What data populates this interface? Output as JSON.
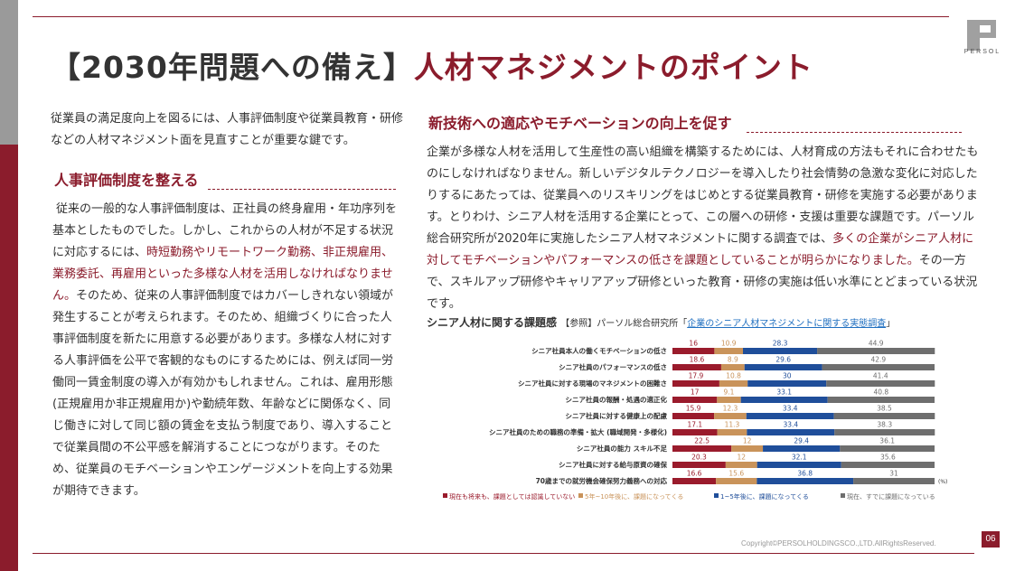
{
  "header": {
    "title_prefix": "【2030年問題への備え】",
    "title_main": "人材マネジメントのポイント",
    "logo_text": "PERSOL"
  },
  "intro": {
    "text": "従業員の満足度向上を図るには、人事評価制度や従業員教育・研修などの人材マネジメント面を見直すことが重要な鍵です。"
  },
  "left_section": {
    "heading": "人事評価制度を整える",
    "p1": "従来の一般的な人事評価制度は、正社員の終身雇用・年功序列を基本としたものでした。しかし、これからの人材が不足する状況に対応するには、",
    "highlight": "時短勤務やリモートワーク勤務、非正規雇用、業務委託、再雇用といった多様な人材を活用しなければなりません。",
    "p2": "そのため、従来の人事評価制度ではカバーしきれない領域が発生することが考えられます。そのため、組織づくりに合った人事評価制度を新たに用意する必要があります。多様な人材に対する人事評価を公平で客観的なものにするためには、例えば同一労働同一賃金制度の導入が有効かもしれません。これは、雇用形態(正規雇用か非正規雇用か)や勤続年数、年齢などに関係なく、同じ働きに対して同じ額の賃金を支払う制度であり、導入することで従業員間の不公平感を解消することにつながります。そのため、従業員のモチベーションやエンゲージメントを向上する効果が期待できます。"
  },
  "right_section": {
    "heading": "新技術への適応やモチベーションの向上を促す",
    "p1": "企業が多様な人材を活用して生産性の高い組織を構築するためには、人材育成の方法もそれに合わせたものにしなければなりません。新しいデジタルテクノロジーを導入したり社会情勢の急激な変化に対応したりするにあたっては、従業員へのリスキリングをはじめとする従業員教育・研修を実施する必要があります。とりわけ、シニア人材を活用する企業にとって、この層への研修・支援は重要な課題です。パーソル総合研究所が2020年に実施したシニア人材マネジメントに関する調査では、",
    "highlight": "多くの企業がシニア人材に対してモチベーションやパフォーマンスの低さを課題としていることが明らかになりました。",
    "p2": "その一方で、スキルアップ研修やキャリアアップ研修といった教育・研修の実施は低い水準にとどまっている状況です。"
  },
  "chart_title": {
    "main": "シニア人材に関する課題感",
    "ref": "【参照】パーソル総合研究所「",
    "link": "企業のシニア人材マネジメントに関する実態調査",
    "close": "」"
  },
  "chart_data": {
    "type": "bar",
    "stacked": true,
    "orientation": "horizontal",
    "unit": "(%)",
    "categories": [
      "シニア社員本人の働くモチベーションの低さ",
      "シニア社員のパフォーマンスの低さ",
      "シニア社員に対する現場のマネジメントの困難さ",
      "シニア社員の報酬・処遇の適正化",
      "シニア社員に対する健康上の配慮",
      "シニア社員のための職務の準備・拡大 (職域開発・多様化)",
      "シニア社員の能力 スキル不足",
      "シニア社員に対する給与原資の確保",
      "70歳までの就労機会確保努力義務への対応"
    ],
    "series": [
      {
        "name": "現在も将来も、課題としては認識していない",
        "color": "#9a1b2c",
        "values": [
          16,
          18.6,
          17.9,
          17,
          15.9,
          17.1,
          22.5,
          20.3,
          16.6
        ]
      },
      {
        "name": "5年~10年後に、課題になってくる",
        "color": "#c9935a",
        "values": [
          10.9,
          8.9,
          10.8,
          9.1,
          12.3,
          11.3,
          12,
          12,
          15.6
        ]
      },
      {
        "name": "1~5年後に、課題になってくる",
        "color": "#1f4e9a",
        "values": [
          28.3,
          29.6,
          30,
          33.1,
          33.4,
          33.4,
          29.4,
          32.1,
          36.8
        ]
      },
      {
        "name": "現在、すでに課題になっている",
        "color": "#6e6e6e",
        "values": [
          44.9,
          42.9,
          41.4,
          40.8,
          38.5,
          38.3,
          36.1,
          35.6,
          31
        ]
      }
    ],
    "xlim": [
      0,
      100
    ],
    "legend_position": "bottom"
  },
  "footer": {
    "copyright": "Copyright©PERSOLHOLDINGSCO.,LTD.AllRightsReserved.",
    "page": "06"
  }
}
